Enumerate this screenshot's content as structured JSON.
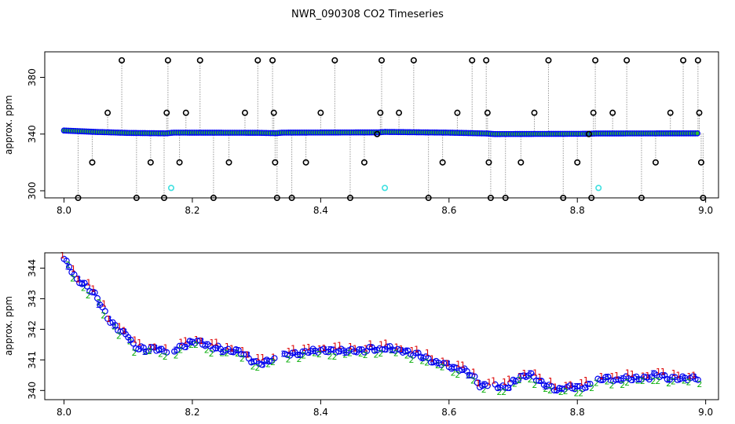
{
  "title": "NWR_090308  CO2 Timeseries",
  "chart_data": [
    {
      "type": "scatter",
      "ylabel": "approx. ppm",
      "xlabel": "",
      "xlim": [
        7.97,
        9.02
      ],
      "ylim": [
        295,
        398
      ],
      "xticks": [
        "8.0",
        "8.2",
        "8.4",
        "8.6",
        "8.8",
        "9.0"
      ],
      "yticks": [
        "300",
        "340",
        "380"
      ],
      "grid": false,
      "baseline": [
        {
          "x": 8.0,
          "y": 342.5
        },
        {
          "x": 8.05,
          "y": 341.5
        },
        {
          "x": 8.1,
          "y": 340.8
        },
        {
          "x": 8.16,
          "y": 340.5
        },
        {
          "x": 8.17,
          "y": 341.0
        },
        {
          "x": 8.3,
          "y": 340.9
        },
        {
          "x": 8.33,
          "y": 340.6
        },
        {
          "x": 8.34,
          "y": 341.0
        },
        {
          "x": 8.49,
          "y": 341.2
        },
        {
          "x": 8.5,
          "y": 341.5
        },
        {
          "x": 8.6,
          "y": 341.0
        },
        {
          "x": 8.66,
          "y": 340.4
        },
        {
          "x": 8.67,
          "y": 340.0
        },
        {
          "x": 8.82,
          "y": 340.2
        },
        {
          "x": 8.83,
          "y": 340.4
        },
        {
          "x": 8.99,
          "y": 340.5
        }
      ],
      "excursions": [
        {
          "x": 8.022,
          "y": 295
        },
        {
          "x": 8.044,
          "y": 320
        },
        {
          "x": 8.068,
          "y": 355
        },
        {
          "x": 8.09,
          "y": 392
        },
        {
          "x": 8.113,
          "y": 295
        },
        {
          "x": 8.135,
          "y": 320
        },
        {
          "x": 8.156,
          "y": 295
        },
        {
          "x": 8.16,
          "y": 355
        },
        {
          "x": 8.162,
          "y": 392
        },
        {
          "x": 8.18,
          "y": 320
        },
        {
          "x": 8.19,
          "y": 355
        },
        {
          "x": 8.212,
          "y": 392
        },
        {
          "x": 8.233,
          "y": 295
        },
        {
          "x": 8.257,
          "y": 320
        },
        {
          "x": 8.282,
          "y": 355
        },
        {
          "x": 8.302,
          "y": 392
        },
        {
          "x": 8.325,
          "y": 392
        },
        {
          "x": 8.327,
          "y": 355
        },
        {
          "x": 8.329,
          "y": 320
        },
        {
          "x": 8.332,
          "y": 295
        },
        {
          "x": 8.355,
          "y": 295
        },
        {
          "x": 8.377,
          "y": 320
        },
        {
          "x": 8.4,
          "y": 355
        },
        {
          "x": 8.422,
          "y": 392
        },
        {
          "x": 8.446,
          "y": 295
        },
        {
          "x": 8.468,
          "y": 320
        },
        {
          "x": 8.488,
          "y": 340
        },
        {
          "x": 8.493,
          "y": 355
        },
        {
          "x": 8.495,
          "y": 392
        },
        {
          "x": 8.522,
          "y": 355
        },
        {
          "x": 8.545,
          "y": 392
        },
        {
          "x": 8.568,
          "y": 295
        },
        {
          "x": 8.59,
          "y": 320
        },
        {
          "x": 8.613,
          "y": 355
        },
        {
          "x": 8.636,
          "y": 392
        },
        {
          "x": 8.658,
          "y": 392
        },
        {
          "x": 8.66,
          "y": 355
        },
        {
          "x": 8.662,
          "y": 320
        },
        {
          "x": 8.665,
          "y": 295
        },
        {
          "x": 8.688,
          "y": 295
        },
        {
          "x": 8.712,
          "y": 320
        },
        {
          "x": 8.733,
          "y": 355
        },
        {
          "x": 8.755,
          "y": 392
        },
        {
          "x": 8.778,
          "y": 295
        },
        {
          "x": 8.8,
          "y": 320
        },
        {
          "x": 8.818,
          "y": 340
        },
        {
          "x": 8.822,
          "y": 295
        },
        {
          "x": 8.825,
          "y": 355
        },
        {
          "x": 8.828,
          "y": 392
        },
        {
          "x": 8.855,
          "y": 355
        },
        {
          "x": 8.877,
          "y": 392
        },
        {
          "x": 8.9,
          "y": 295
        },
        {
          "x": 8.922,
          "y": 320
        },
        {
          "x": 8.945,
          "y": 355
        },
        {
          "x": 8.965,
          "y": 392
        },
        {
          "x": 8.988,
          "y": 392
        },
        {
          "x": 8.99,
          "y": 355
        },
        {
          "x": 8.993,
          "y": 320
        },
        {
          "x": 8.996,
          "y": 295
        }
      ],
      "cyan_points": [
        {
          "x": 8.167,
          "y": 302
        },
        {
          "x": 8.5,
          "y": 302
        },
        {
          "x": 8.833,
          "y": 302
        }
      ],
      "colors": {
        "baseline": "#0000ff",
        "fill": "#2cc02c",
        "excursion": "#000000",
        "cyan": "#40e0e0",
        "lines": "#999999"
      }
    },
    {
      "type": "scatter",
      "ylabel": "approx. ppm",
      "xlabel": "",
      "xlim": [
        7.97,
        9.02
      ],
      "ylim": [
        339.7,
        344.5
      ],
      "xticks": [
        "8.0",
        "8.2",
        "8.4",
        "8.6",
        "8.8",
        "9.0"
      ],
      "yticks": [
        "340",
        "341",
        "342",
        "343",
        "344"
      ],
      "grid": false,
      "series_markers": [
        "1",
        "2",
        "3"
      ],
      "gaps": [
        [
          8.16,
          8.17
        ],
        [
          8.33,
          8.34
        ],
        [
          8.66,
          8.67
        ],
        [
          8.82,
          8.83
        ]
      ],
      "trend": [
        {
          "x": 8.0,
          "y": 344.3
        },
        {
          "x": 8.01,
          "y": 344.0
        },
        {
          "x": 8.02,
          "y": 343.6
        },
        {
          "x": 8.03,
          "y": 343.5
        },
        {
          "x": 8.04,
          "y": 343.3
        },
        {
          "x": 8.05,
          "y": 343.1
        },
        {
          "x": 8.06,
          "y": 342.7
        },
        {
          "x": 8.07,
          "y": 342.3
        },
        {
          "x": 8.08,
          "y": 342.1
        },
        {
          "x": 8.09,
          "y": 341.9
        },
        {
          "x": 8.1,
          "y": 341.8
        },
        {
          "x": 8.11,
          "y": 341.4
        },
        {
          "x": 8.12,
          "y": 341.4
        },
        {
          "x": 8.13,
          "y": 341.3
        },
        {
          "x": 8.14,
          "y": 341.4
        },
        {
          "x": 8.15,
          "y": 341.3
        },
        {
          "x": 8.16,
          "y": 341.3
        },
        {
          "x": 8.17,
          "y": 341.3
        },
        {
          "x": 8.18,
          "y": 341.4
        },
        {
          "x": 8.19,
          "y": 341.5
        },
        {
          "x": 8.2,
          "y": 341.6
        },
        {
          "x": 8.21,
          "y": 341.6
        },
        {
          "x": 8.22,
          "y": 341.5
        },
        {
          "x": 8.23,
          "y": 341.4
        },
        {
          "x": 8.24,
          "y": 341.4
        },
        {
          "x": 8.25,
          "y": 341.3
        },
        {
          "x": 8.26,
          "y": 341.3
        },
        {
          "x": 8.27,
          "y": 341.3
        },
        {
          "x": 8.28,
          "y": 341.2
        },
        {
          "x": 8.29,
          "y": 341.0
        },
        {
          "x": 8.3,
          "y": 340.9
        },
        {
          "x": 8.31,
          "y": 340.9
        },
        {
          "x": 8.32,
          "y": 341.0
        },
        {
          "x": 8.33,
          "y": 341.0
        },
        {
          "x": 8.34,
          "y": 341.1
        },
        {
          "x": 8.35,
          "y": 341.2
        },
        {
          "x": 8.36,
          "y": 341.2
        },
        {
          "x": 8.37,
          "y": 341.2
        },
        {
          "x": 8.38,
          "y": 341.3
        },
        {
          "x": 8.39,
          "y": 341.3
        },
        {
          "x": 8.4,
          "y": 341.3
        },
        {
          "x": 8.41,
          "y": 341.3
        },
        {
          "x": 8.42,
          "y": 341.3
        },
        {
          "x": 8.43,
          "y": 341.3
        },
        {
          "x": 8.44,
          "y": 341.3
        },
        {
          "x": 8.45,
          "y": 341.3
        },
        {
          "x": 8.46,
          "y": 341.3
        },
        {
          "x": 8.47,
          "y": 341.3
        },
        {
          "x": 8.48,
          "y": 341.4
        },
        {
          "x": 8.49,
          "y": 341.3
        },
        {
          "x": 8.5,
          "y": 341.4
        },
        {
          "x": 8.51,
          "y": 341.4
        },
        {
          "x": 8.52,
          "y": 341.3
        },
        {
          "x": 8.53,
          "y": 341.3
        },
        {
          "x": 8.54,
          "y": 341.2
        },
        {
          "x": 8.55,
          "y": 341.2
        },
        {
          "x": 8.56,
          "y": 341.1
        },
        {
          "x": 8.57,
          "y": 341.0
        },
        {
          "x": 8.58,
          "y": 340.9
        },
        {
          "x": 8.59,
          "y": 340.9
        },
        {
          "x": 8.6,
          "y": 340.8
        },
        {
          "x": 8.61,
          "y": 340.7
        },
        {
          "x": 8.62,
          "y": 340.7
        },
        {
          "x": 8.63,
          "y": 340.6
        },
        {
          "x": 8.64,
          "y": 340.4
        },
        {
          "x": 8.65,
          "y": 340.1
        },
        {
          "x": 8.66,
          "y": 340.2
        },
        {
          "x": 8.67,
          "y": 340.2
        },
        {
          "x": 8.68,
          "y": 340.1
        },
        {
          "x": 8.69,
          "y": 340.1
        },
        {
          "x": 8.7,
          "y": 340.3
        },
        {
          "x": 8.71,
          "y": 340.4
        },
        {
          "x": 8.72,
          "y": 340.5
        },
        {
          "x": 8.73,
          "y": 340.5
        },
        {
          "x": 8.74,
          "y": 340.3
        },
        {
          "x": 8.75,
          "y": 340.2
        },
        {
          "x": 8.76,
          "y": 340.1
        },
        {
          "x": 8.77,
          "y": 340.0
        },
        {
          "x": 8.78,
          "y": 340.1
        },
        {
          "x": 8.79,
          "y": 340.1
        },
        {
          "x": 8.8,
          "y": 340.1
        },
        {
          "x": 8.81,
          "y": 340.1
        },
        {
          "x": 8.82,
          "y": 340.2
        },
        {
          "x": 8.83,
          "y": 340.3
        },
        {
          "x": 8.84,
          "y": 340.4
        },
        {
          "x": 8.85,
          "y": 340.4
        },
        {
          "x": 8.86,
          "y": 340.3
        },
        {
          "x": 8.87,
          "y": 340.4
        },
        {
          "x": 8.88,
          "y": 340.4
        },
        {
          "x": 8.89,
          "y": 340.4
        },
        {
          "x": 8.9,
          "y": 340.4
        },
        {
          "x": 8.91,
          "y": 340.4
        },
        {
          "x": 8.92,
          "y": 340.5
        },
        {
          "x": 8.93,
          "y": 340.5
        },
        {
          "x": 8.94,
          "y": 340.4
        },
        {
          "x": 8.95,
          "y": 340.4
        },
        {
          "x": 8.96,
          "y": 340.4
        },
        {
          "x": 8.97,
          "y": 340.4
        },
        {
          "x": 8.98,
          "y": 340.4
        },
        {
          "x": 8.99,
          "y": 340.4
        }
      ],
      "colors": {
        "1": "#dd0000",
        "2": "#10b010",
        "3": "#0000ee",
        "ring": "#0000ee"
      }
    }
  ]
}
